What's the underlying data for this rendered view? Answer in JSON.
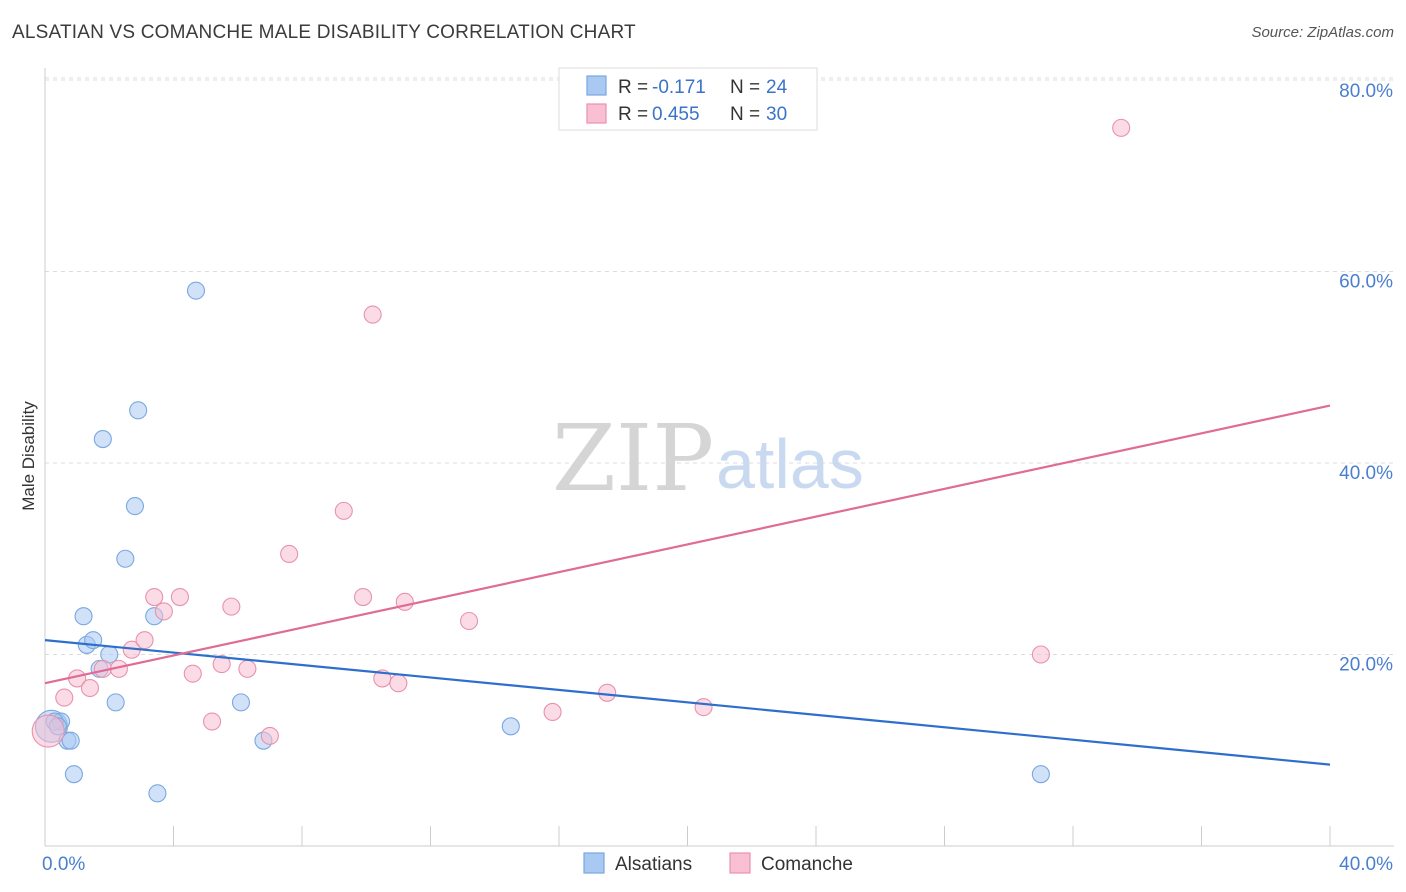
{
  "title": "ALSATIAN VS COMANCHE MALE DISABILITY CORRELATION CHART",
  "source": "Source: ZipAtlas.com",
  "watermark": {
    "zip": "ZIP",
    "atlas": "atlas"
  },
  "legend_top": [
    {
      "r_label": "R = ",
      "r_value": "-0.171",
      "n_label": "N = ",
      "n_value": "24",
      "color": "#a9c9f2",
      "stroke": "#7aa8e0"
    },
    {
      "r_label": "R = ",
      "r_value": "0.455",
      "n_label": "N = ",
      "n_value": "30",
      "color": "#f8c0d2",
      "stroke": "#e892ad"
    }
  ],
  "legend_bottom": [
    {
      "label": "Alsatians",
      "color": "#a9c9f2",
      "stroke": "#7aa8e0"
    },
    {
      "label": "Comanche",
      "color": "#f8c0d2",
      "stroke": "#e892ad"
    }
  ],
  "chart_data": {
    "type": "scatter",
    "title": "ALSATIAN VS COMANCHE MALE DISABILITY CORRELATION CHART",
    "xlabel": "",
    "ylabel": "Male Disability",
    "xlim": [
      0,
      40
    ],
    "ylim": [
      0,
      80
    ],
    "x_tick_labels": [
      {
        "value": 0,
        "label": "0.0%"
      },
      {
        "value": 40,
        "label": "40.0%"
      }
    ],
    "y_tick_labels": [
      {
        "value": 20,
        "label": "20.0%"
      },
      {
        "value": 40,
        "label": "40.0%"
      },
      {
        "value": 60,
        "label": "60.0%"
      },
      {
        "value": 80,
        "label": "80.0%"
      }
    ],
    "series": [
      {
        "name": "Alsatians",
        "color": "#a9c9f2",
        "stroke": "#7aa8e0",
        "line_color": "#2f6fcc",
        "trend": {
          "x": [
            0,
            40
          ],
          "y": [
            21.5,
            8.5
          ]
        },
        "points": [
          {
            "x": 0.2,
            "y": 12.5,
            "big": true
          },
          {
            "x": 0.5,
            "y": 13.0
          },
          {
            "x": 0.7,
            "y": 11.0
          },
          {
            "x": 0.8,
            "y": 11.0
          },
          {
            "x": 0.9,
            "y": 7.5
          },
          {
            "x": 1.2,
            "y": 24.0
          },
          {
            "x": 1.3,
            "y": 21.0
          },
          {
            "x": 1.5,
            "y": 21.5
          },
          {
            "x": 1.7,
            "y": 18.5
          },
          {
            "x": 1.8,
            "y": 42.5
          },
          {
            "x": 2.0,
            "y": 20.0
          },
          {
            "x": 2.2,
            "y": 15.0
          },
          {
            "x": 2.5,
            "y": 30.0
          },
          {
            "x": 2.8,
            "y": 35.5
          },
          {
            "x": 2.9,
            "y": 45.5
          },
          {
            "x": 3.4,
            "y": 24.0
          },
          {
            "x": 3.5,
            "y": 5.5
          },
          {
            "x": 4.7,
            "y": 58.0
          },
          {
            "x": 6.1,
            "y": 15.0
          },
          {
            "x": 6.8,
            "y": 11.0
          },
          {
            "x": 14.5,
            "y": 12.5
          },
          {
            "x": 31.0,
            "y": 7.5
          },
          {
            "x": 0.3,
            "y": 13.0
          },
          {
            "x": 0.4,
            "y": 12.5
          }
        ]
      },
      {
        "name": "Comanche",
        "color": "#f8c0d2",
        "stroke": "#e892ad",
        "line_color": "#e06b96",
        "trend": {
          "x": [
            0,
            40
          ],
          "y": [
            17.0,
            46.0
          ]
        },
        "points": [
          {
            "x": 0.1,
            "y": 12.0,
            "big": true
          },
          {
            "x": 0.6,
            "y": 15.5
          },
          {
            "x": 1.0,
            "y": 17.5
          },
          {
            "x": 1.4,
            "y": 16.5
          },
          {
            "x": 1.8,
            "y": 18.5
          },
          {
            "x": 2.3,
            "y": 18.5
          },
          {
            "x": 2.7,
            "y": 20.5
          },
          {
            "x": 3.1,
            "y": 21.5
          },
          {
            "x": 3.4,
            "y": 26.0
          },
          {
            "x": 3.7,
            "y": 24.5
          },
          {
            "x": 4.2,
            "y": 26.0
          },
          {
            "x": 4.6,
            "y": 18.0
          },
          {
            "x": 5.2,
            "y": 13.0
          },
          {
            "x": 5.5,
            "y": 19.0
          },
          {
            "x": 5.8,
            "y": 25.0
          },
          {
            "x": 6.3,
            "y": 18.5
          },
          {
            "x": 7.0,
            "y": 11.5
          },
          {
            "x": 7.6,
            "y": 30.5
          },
          {
            "x": 9.3,
            "y": 35.0
          },
          {
            "x": 9.9,
            "y": 26.0
          },
          {
            "x": 10.2,
            "y": 55.5
          },
          {
            "x": 10.5,
            "y": 17.5
          },
          {
            "x": 11.0,
            "y": 17.0
          },
          {
            "x": 11.2,
            "y": 25.5
          },
          {
            "x": 13.2,
            "y": 23.5
          },
          {
            "x": 15.8,
            "y": 14.0
          },
          {
            "x": 17.5,
            "y": 16.0
          },
          {
            "x": 20.5,
            "y": 14.5
          },
          {
            "x": 31.0,
            "y": 20.0
          },
          {
            "x": 33.5,
            "y": 75.0
          }
        ]
      }
    ]
  }
}
